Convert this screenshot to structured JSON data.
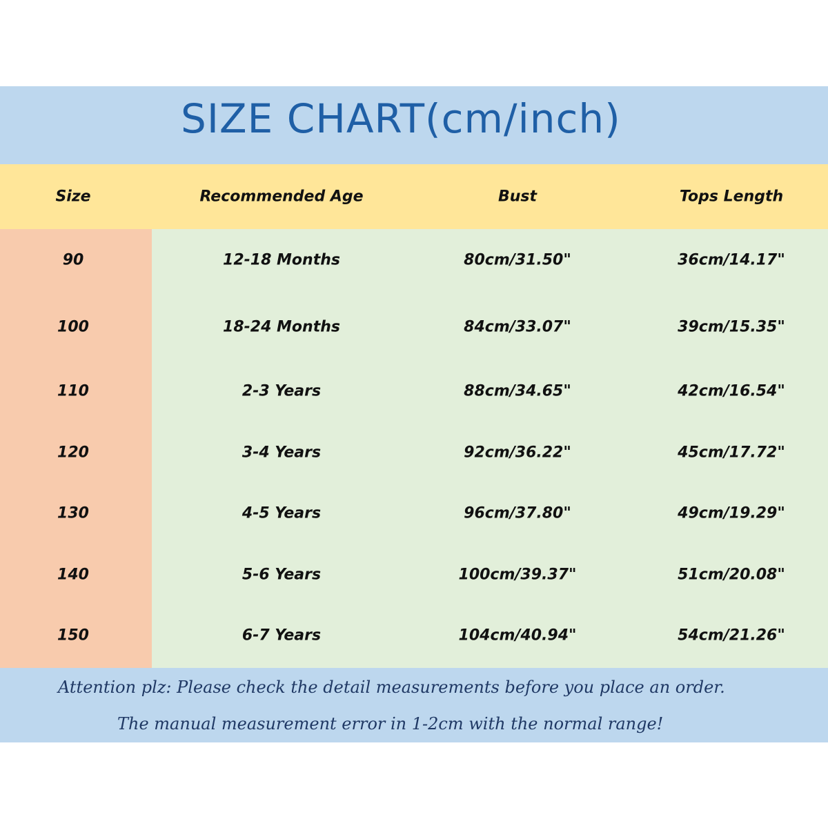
{
  "title": "SIZE CHART(cm/inch)",
  "colors": {
    "title_band": "#bdd7ee",
    "header_band": "#ffe699",
    "size_column": "#f8cbad",
    "body": "#e2efda",
    "title_text": "#1f5fa6"
  },
  "table": {
    "headers": [
      "Size",
      "Recommended Age",
      "Bust",
      "Tops Length"
    ],
    "rows": [
      [
        "90",
        "12-18 Months",
        "80cm/31.50\"",
        "36cm/14.17\""
      ],
      [
        "100",
        "18-24 Months",
        "84cm/33.07\"",
        "39cm/15.35\""
      ],
      [
        "110",
        "2-3 Years",
        "88cm/34.65\"",
        "42cm/16.54\""
      ],
      [
        "120",
        "3-4 Years",
        "92cm/36.22\"",
        "45cm/17.72\""
      ],
      [
        "130",
        "4-5 Years",
        "96cm/37.80\"",
        "49cm/19.29\""
      ],
      [
        "140",
        "5-6 Years",
        "100cm/39.37\"",
        "51cm/20.08\""
      ],
      [
        "150",
        "6-7 Years",
        "104cm/40.94\"",
        "54cm/21.26\""
      ]
    ]
  },
  "footer": {
    "line1": "Attention plz:  Please check the detail measurements before you place an order.",
    "line2": "The manual measurement error in 1-2cm with the normal range!"
  }
}
